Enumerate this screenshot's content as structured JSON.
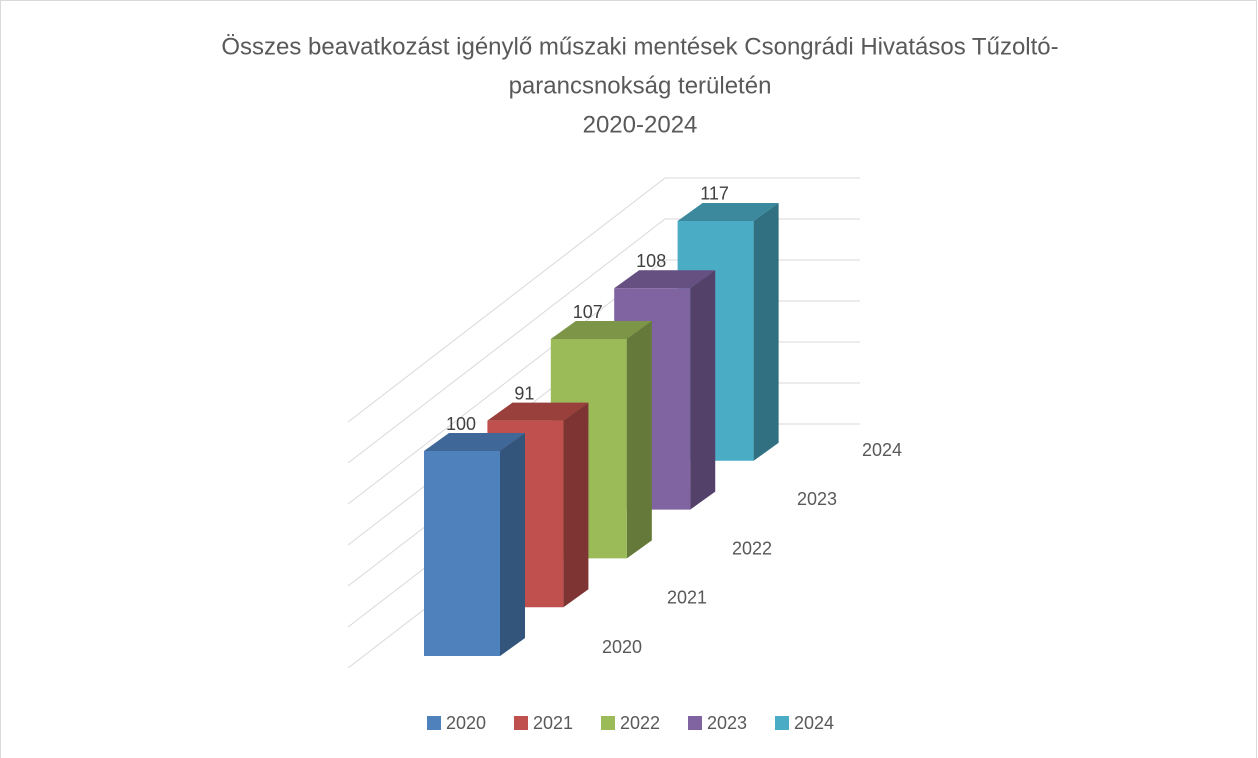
{
  "chart_data": {
    "type": "bar3d",
    "title": [
      "Összes beavatkozást igénylő műszaki mentések Csongrádi Hivatásos Tűzoltó-",
      "parancsnokság területén",
      "2020-2024"
    ],
    "series": [
      {
        "name": "2020",
        "color": "#4f81bd",
        "values": [
          100
        ]
      },
      {
        "name": "2021",
        "color": "#c0504d",
        "values": [
          91
        ]
      },
      {
        "name": "2022",
        "color": "#9bbb59",
        "values": [
          107
        ]
      },
      {
        "name": "2023",
        "color": "#8064a2",
        "values": [
          108
        ]
      },
      {
        "name": "2024",
        "color": "#4bacc6",
        "values": [
          117
        ]
      }
    ],
    "ylim": [
      0,
      120
    ],
    "yticks": [
      0,
      20,
      40,
      60,
      80,
      100,
      120
    ],
    "grid": true,
    "legend": "bottom"
  }
}
